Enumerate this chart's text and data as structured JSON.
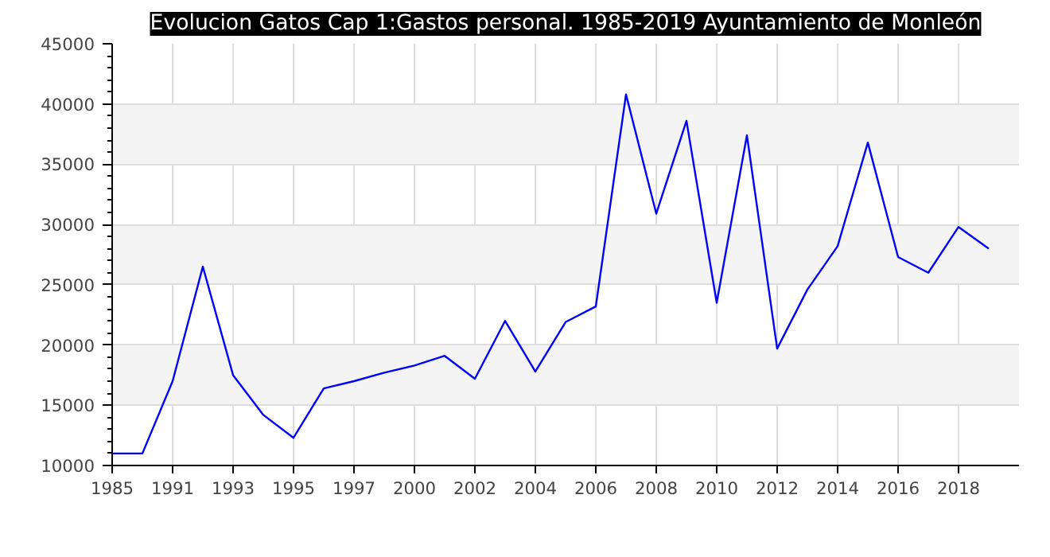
{
  "chart_data": {
    "type": "line",
    "title": "Evolucion Gatos Cap 1:Gastos personal. 1985-2019 Ayuntamiento de Monleón",
    "categories": [
      "1985",
      null,
      "1991",
      null,
      "1993",
      null,
      "1995",
      null,
      "1997",
      null,
      "2000",
      null,
      "2002",
      null,
      "2004",
      null,
      "2006",
      null,
      "2008",
      null,
      "2010",
      null,
      "2012",
      null,
      "2014",
      null,
      "2016",
      null,
      "2018",
      null,
      null
    ],
    "series": [
      {
        "color": "#0000ff",
        "values": [
          11000,
          11000,
          17000,
          26500,
          17500,
          14200,
          12300,
          16400,
          17000,
          17700,
          18300,
          19100,
          17200,
          22000,
          17800,
          21900,
          23200,
          40800,
          30900,
          38600,
          23500,
          37400,
          19700,
          24600,
          28200,
          36800,
          27300,
          26000,
          29800,
          28000,
          null
        ]
      }
    ],
    "ylim": [
      10000,
      45000
    ],
    "yticks": [
      10000,
      15000,
      20000,
      25000,
      30000,
      35000,
      40000,
      45000
    ],
    "grid": true,
    "marker": "none",
    "line_style": "solid"
  }
}
